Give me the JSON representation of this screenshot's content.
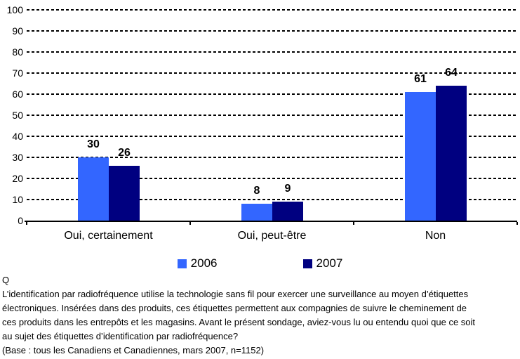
{
  "chart_data": {
    "type": "bar",
    "categories": [
      "Oui, certainement",
      "Oui, peut-être",
      "Non"
    ],
    "series": [
      {
        "name": "2006",
        "color": "#3366FF",
        "values": [
          30,
          8,
          61
        ]
      },
      {
        "name": "2007",
        "color": "#000080",
        "values": [
          26,
          9,
          64
        ]
      }
    ],
    "ylim": [
      0,
      100
    ],
    "ytick_step": 10,
    "grid": "horizontal-dashed-black",
    "legend_position": "bottom",
    "value_labels": "outside-end-bold"
  },
  "footer": {
    "question_label": "Q",
    "question_lines": [
      "L’identification par radiofréquence utilise la technologie sans fil pour exercer une surveillance au moyen d’étiquettes",
      "électroniques. Insérées dans des produits, ces étiquettes permettent aux compagnies de suivre le cheminement de",
      "ces produits dans les entrepôts et les magasins. Avant le présent sondage, aviez-vous lu ou entendu quoi que ce soit",
      "au sujet des étiquettes d’identification par radiofréquence?"
    ],
    "base_note": "(Base : tous les Canadiens et Canadiennes, mars 2007, n=1152)"
  }
}
